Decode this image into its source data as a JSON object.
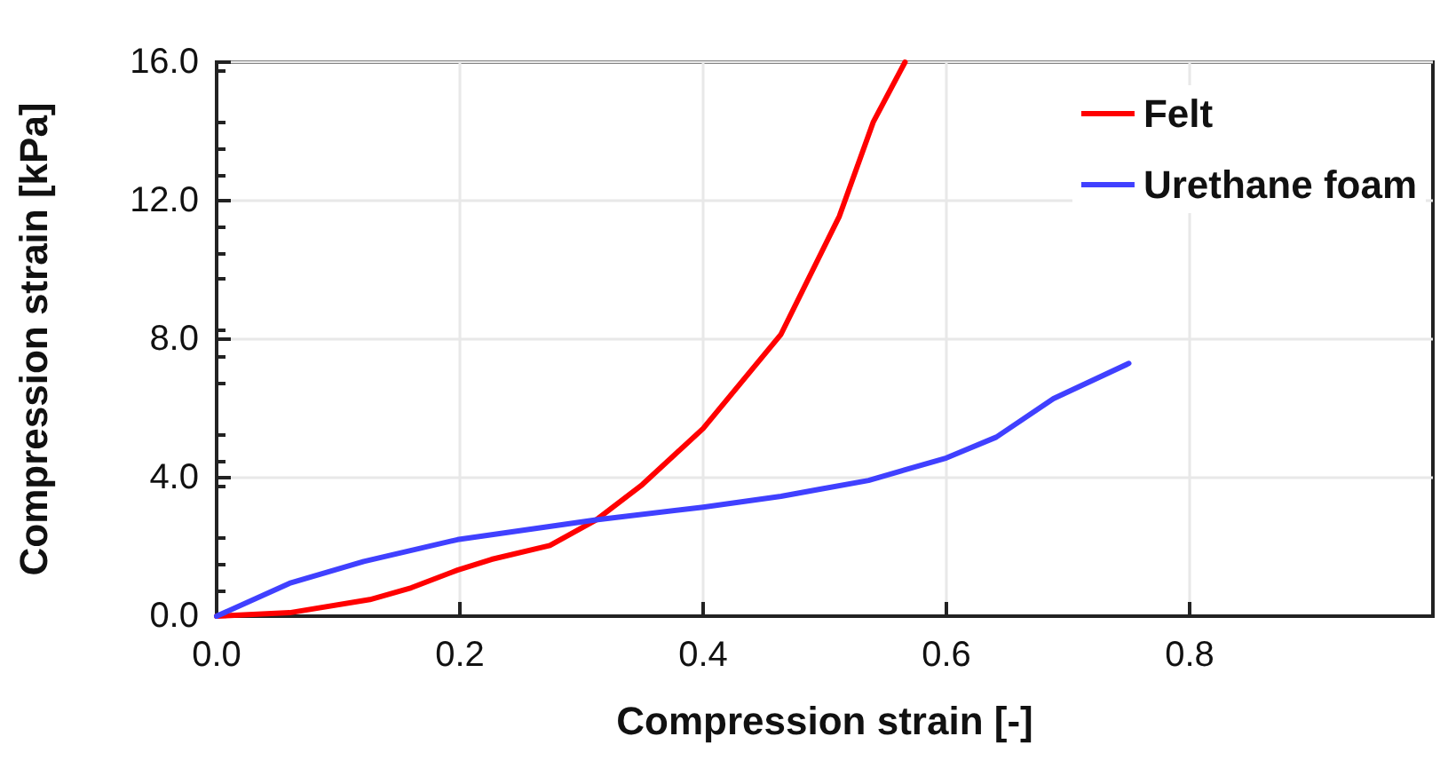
{
  "chart_data": {
    "type": "line",
    "xlabel": "Compression strain [-]",
    "ylabel": "Compression strain [kPa]",
    "xlim": [
      0,
      1.0
    ],
    "xticks": [
      {
        "value": 0,
        "label": "0.0"
      },
      {
        "value": 0.2,
        "label": "0.2"
      },
      {
        "value": 0.4,
        "label": "0.4"
      },
      {
        "value": 0.6,
        "label": "0.6"
      },
      {
        "value": 0.8,
        "label": "0.8"
      }
    ],
    "ylim": [
      0,
      16
    ],
    "yticks": [
      {
        "value": 0,
        "label": "0.0"
      },
      {
        "value": 4,
        "label": "4.0"
      },
      {
        "value": 8,
        "label": "8.0"
      },
      {
        "value": 12,
        "label": "12.0"
      },
      {
        "value": 16,
        "label": "16.0"
      }
    ],
    "grid": true,
    "legend": "top right",
    "marker": "none",
    "line_style": "solid",
    "series": [
      {
        "name": "Felt",
        "color": "#ff0000",
        "x": [
          0,
          0.06,
          0.126,
          0.16,
          0.198,
          0.226,
          0.274,
          0.312,
          0.35,
          0.4,
          0.464,
          0.512,
          0.54,
          0.566
        ],
        "values": [
          0,
          0.1,
          0.48,
          0.82,
          1.33,
          1.64,
          2.04,
          2.78,
          3.8,
          5.42,
          8.14,
          11.55,
          14.28,
          16.0
        ]
      },
      {
        "name": "Urethane foam",
        "color": "#4040ff",
        "x": [
          0,
          0.06,
          0.121,
          0.198,
          0.312,
          0.4,
          0.464,
          0.498,
          0.536,
          0.6,
          0.641,
          0.688,
          0.75
        ],
        "values": [
          0,
          0.95,
          1.58,
          2.21,
          2.78,
          3.15,
          3.46,
          3.68,
          3.92,
          4.57,
          5.17,
          6.28,
          7.3
        ]
      }
    ]
  }
}
